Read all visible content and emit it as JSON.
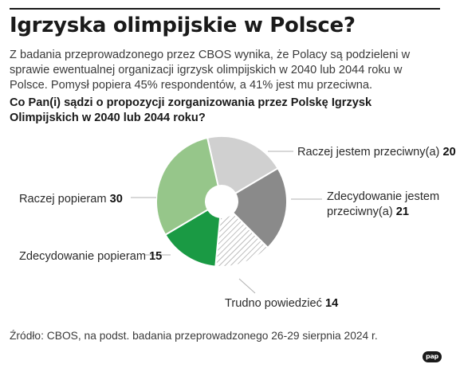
{
  "title": "Igrzyska olimpijskie w Polsce?",
  "intro": "Z badania przeprowadzonego przez CBOS wynika, że Polacy są podzieleni w sprawie ewentualnej organizacji igrzysk olimpijskich w 2040 lub 2044 roku w Polsce. Pomysł popiera 45% respondentów, a 41% jest mu przeciwna.",
  "question": "Co Pan(i) sądzi o propozycji zorganizowania przez Polskę Igrzysk Olimpijskich w 2040 lub 2044 roku?",
  "source": "Źródło: CBOS, na podst. badania przeprowadzonego 26-29 sierpnia 2024 r.",
  "logo": "pap",
  "chart_data": {
    "type": "pie",
    "title": "",
    "donut": true,
    "slices": [
      {
        "label": "Raczej jestem przeciwny(a)",
        "value": 20,
        "color": "#d0d0d0",
        "pattern": "none"
      },
      {
        "label": "Zdecydowanie jestem przeciwny(a)",
        "value": 21,
        "color": "#8a8a8a",
        "pattern": "none"
      },
      {
        "label": "Trudno powiedzieć",
        "value": 14,
        "color": "#ffffff",
        "pattern": "diagonal-hatch"
      },
      {
        "label": "Zdecydowanie popieram",
        "value": 15,
        "color": "#1a9a44",
        "pattern": "none"
      },
      {
        "label": "Raczej popieram",
        "value": 30,
        "color": "#96c68a",
        "pattern": "none"
      }
    ]
  }
}
